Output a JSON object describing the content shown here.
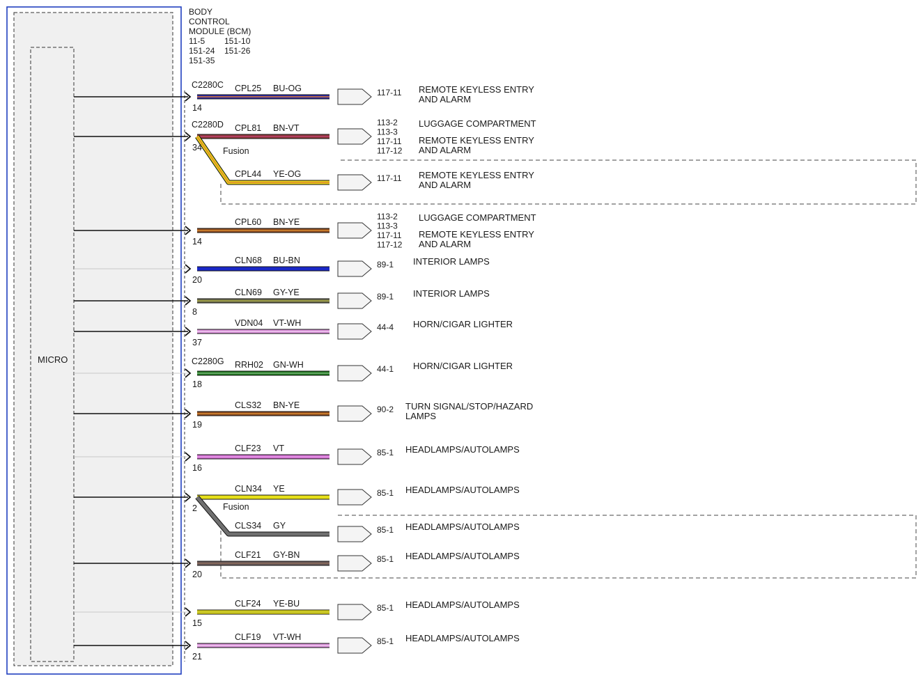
{
  "module": {
    "title_lines": [
      "BODY",
      "CONTROL",
      "MODULE (BCM)"
    ],
    "ref_rows": [
      [
        "11-5",
        "151-10"
      ],
      [
        "151-24",
        "151-26"
      ],
      [
        "151-35",
        ""
      ]
    ],
    "micro_label": "MICRO"
  },
  "splice_label": "Fusion",
  "colors": {
    "module_border": "#1f3fbf",
    "BU-OG": [
      "#2a2aa8",
      "#e07a2a"
    ],
    "BN-VT": [
      "#8a3a3a",
      "#c04070"
    ],
    "YE-OG": [
      "#e6d21a",
      "#e08a2a"
    ],
    "BN-YE": [
      "#8a4a20",
      "#d88a30"
    ],
    "BU-BN": [
      "#1a28c8",
      "#1a28c8"
    ],
    "GY-YE": [
      "#6e6e50",
      "#a6a640"
    ],
    "VT-WH": [
      "#d890d8",
      "#f0c8f0"
    ],
    "GN-WH": [
      "#1f7a1f",
      "#7ab07a"
    ],
    "VT": [
      "#d070d0",
      "#e898e8"
    ],
    "YE": [
      "#e6e01a",
      "#e6e01a"
    ],
    "GY": [
      "#707070",
      "#707070"
    ],
    "GY-BN": [
      "#6a5a5a",
      "#8a6a5a"
    ],
    "YE-BU": [
      "#e6e01a",
      "#b0b030"
    ]
  },
  "wires": [
    {
      "connector": "C2280C",
      "pin": "14",
      "circuit": "CPL25",
      "color": "BU-OG",
      "ref": "117-11",
      "dest": "REMOTE KEYLESS ENTRY\nAND ALARM"
    },
    {
      "connector": "C2280D",
      "pin": "34",
      "circuit": "CPL81",
      "color": "BN-VT",
      "ref": "113-2\n113-3\n117-11\n117-12",
      "dest": "LUGGAGE COMPARTMENT\n\nREMOTE KEYLESS ENTRY\nAND ALARM"
    },
    {
      "connector": "",
      "pin": "",
      "circuit": "CPL44",
      "color": "YE-OG",
      "ref": "117-11",
      "dest": "REMOTE KEYLESS ENTRY\nAND ALARM"
    },
    {
      "connector": "",
      "pin": "14",
      "circuit": "CPL60",
      "color": "BN-YE",
      "ref": "113-2\n113-3\n117-11\n117-12",
      "dest": "LUGGAGE COMPARTMENT\n\nREMOTE KEYLESS ENTRY\nAND ALARM"
    },
    {
      "connector": "",
      "pin": "20",
      "circuit": "CLN68",
      "color": "BU-BN",
      "ref": "89-1",
      "dest": "INTERIOR LAMPS"
    },
    {
      "connector": "",
      "pin": "8",
      "circuit": "CLN69",
      "color": "GY-YE",
      "ref": "89-1",
      "dest": "INTERIOR LAMPS"
    },
    {
      "connector": "",
      "pin": "37",
      "circuit": "VDN04",
      "color": "VT-WH",
      "ref": "44-4",
      "dest": "HORN/CIGAR LIGHTER"
    },
    {
      "connector": "C2280G",
      "pin": "18",
      "circuit": "RRH02",
      "color": "GN-WH",
      "ref": "44-1",
      "dest": "HORN/CIGAR LIGHTER"
    },
    {
      "connector": "",
      "pin": "19",
      "circuit": "CLS32",
      "color": "BN-YE",
      "ref": "90-2",
      "dest": "TURN SIGNAL/STOP/HAZARD\nLAMPS"
    },
    {
      "connector": "",
      "pin": "16",
      "circuit": "CLF23",
      "color": "VT",
      "ref": "85-1",
      "dest": "HEADLAMPS/AUTOLAMPS"
    },
    {
      "connector": "",
      "pin": "2",
      "circuit": "CLN34",
      "color": "YE",
      "ref": "85-1",
      "dest": "HEADLAMPS/AUTOLAMPS"
    },
    {
      "connector": "",
      "pin": "",
      "circuit": "CLS34",
      "color": "GY",
      "ref": "85-1",
      "dest": "HEADLAMPS/AUTOLAMPS"
    },
    {
      "connector": "",
      "pin": "20",
      "circuit": "CLF21",
      "color": "GY-BN",
      "ref": "85-1",
      "dest": "HEADLAMPS/AUTOLAMPS"
    },
    {
      "connector": "",
      "pin": "15",
      "circuit": "CLF24",
      "color": "YE-BU",
      "ref": "85-1",
      "dest": "HEADLAMPS/AUTOLAMPS"
    },
    {
      "connector": "",
      "pin": "21",
      "circuit": "CLF19",
      "color": "VT-WH",
      "ref": "85-1",
      "dest": "HEADLAMPS/AUTOLAMPS"
    }
  ]
}
